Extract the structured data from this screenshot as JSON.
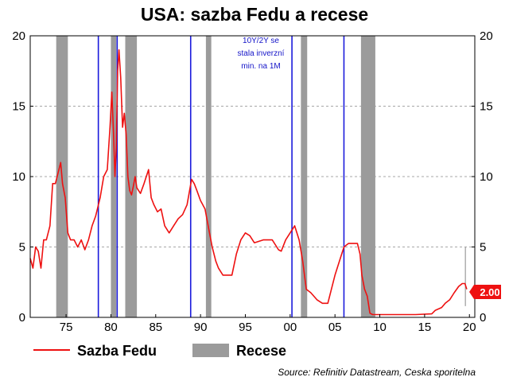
{
  "chart_data": {
    "type": "line",
    "title": "USA: sazba Fedu a recese",
    "xlim": [
      1971.0,
      2020.6
    ],
    "ylim": [
      0,
      20
    ],
    "x_ticks": [
      {
        "value": 1975,
        "label": "75"
      },
      {
        "value": 1980,
        "label": "80"
      },
      {
        "value": 1985,
        "label": "85"
      },
      {
        "value": 1990,
        "label": "90"
      },
      {
        "value": 1995,
        "label": "95"
      },
      {
        "value": 2000,
        "label": "00"
      },
      {
        "value": 2005,
        "label": "05"
      },
      {
        "value": 2010,
        "label": "10"
      },
      {
        "value": 2015,
        "label": "15"
      },
      {
        "value": 2020,
        "label": "20"
      }
    ],
    "y_ticks": [
      {
        "value": 0,
        "label": "0"
      },
      {
        "value": 5,
        "label": "5"
      },
      {
        "value": 10,
        "label": "10"
      },
      {
        "value": 15,
        "label": "15"
      },
      {
        "value": 20,
        "label": "20"
      }
    ],
    "grid": "dashed-horizontal",
    "series": [
      {
        "name": "Sazba Fedu",
        "color": "#ee1111",
        "type": "line",
        "x": [
          1971.0,
          1971.3,
          1971.6,
          1971.9,
          1972.2,
          1972.5,
          1972.8,
          1973.2,
          1973.5,
          1973.8,
          1974.2,
          1974.4,
          1974.6,
          1974.9,
          1975.2,
          1975.5,
          1975.9,
          1976.3,
          1976.7,
          1977.1,
          1977.5,
          1977.9,
          1978.3,
          1978.8,
          1979.2,
          1979.6,
          1979.9,
          1980.1,
          1980.3,
          1980.45,
          1980.6,
          1980.75,
          1980.9,
          1981.1,
          1981.3,
          1981.5,
          1981.7,
          1981.9,
          1982.1,
          1982.3,
          1982.5,
          1982.7,
          1982.9,
          1983.3,
          1983.7,
          1984.2,
          1984.5,
          1984.8,
          1985.2,
          1985.6,
          1986.0,
          1986.5,
          1987.0,
          1987.5,
          1988.0,
          1988.5,
          1989.0,
          1989.3,
          1989.6,
          1990.0,
          1990.5,
          1991.0,
          1991.3,
          1991.7,
          1992.0,
          1992.5,
          1993.0,
          1993.5,
          1994.0,
          1994.5,
          1995.0,
          1995.5,
          1996.0,
          1997.0,
          1998.0,
          1998.7,
          1999.0,
          1999.5,
          2000.0,
          2000.5,
          2001.0,
          2001.4,
          2001.8,
          2002.3,
          2003.0,
          2003.6,
          2004.2,
          2004.6,
          2005.0,
          2005.5,
          2006.0,
          2006.5,
          2007.0,
          2007.5,
          2007.8,
          2008.0,
          2008.3,
          2008.6,
          2008.9,
          2009.2,
          2010.0,
          2012.0,
          2014.0,
          2015.8,
          2016.2,
          2016.9,
          2017.3,
          2017.8,
          2018.3,
          2018.8,
          2019.2,
          2019.5,
          2019.7
        ],
        "values": [
          4.2,
          3.5,
          5.0,
          4.7,
          3.5,
          5.5,
          5.5,
          6.5,
          9.5,
          9.5,
          10.5,
          11.0,
          9.5,
          8.5,
          6.0,
          5.5,
          5.5,
          5.0,
          5.5,
          4.8,
          5.5,
          6.5,
          7.2,
          8.5,
          10.0,
          10.5,
          13.5,
          16.0,
          13.0,
          10.0,
          12.0,
          17.5,
          19.0,
          17.0,
          13.5,
          14.5,
          13.0,
          10.0,
          9.0,
          8.7,
          9.3,
          10.0,
          9.2,
          8.8,
          9.5,
          10.5,
          8.5,
          8.0,
          7.5,
          7.7,
          6.5,
          6.0,
          6.5,
          7.0,
          7.3,
          8.0,
          9.8,
          9.5,
          9.0,
          8.3,
          7.7,
          6.0,
          5.0,
          4.0,
          3.5,
          3.0,
          3.0,
          3.0,
          4.5,
          5.5,
          6.0,
          5.8,
          5.3,
          5.5,
          5.5,
          4.8,
          4.7,
          5.5,
          6.0,
          6.5,
          5.5,
          4.0,
          2.0,
          1.75,
          1.25,
          1.0,
          1.0,
          2.0,
          3.0,
          4.0,
          5.0,
          5.25,
          5.25,
          5.25,
          4.5,
          3.0,
          2.0,
          1.5,
          0.3,
          0.2,
          0.2,
          0.2,
          0.2,
          0.25,
          0.5,
          0.7,
          1.0,
          1.25,
          1.75,
          2.2,
          2.4,
          2.4,
          2.0
        ]
      },
      {
        "name": "Recese",
        "color": "#9b9b9b",
        "type": "band",
        "periods": [
          [
            1973.9,
            1975.2
          ],
          [
            1980.0,
            1980.6
          ],
          [
            1981.6,
            1982.9
          ],
          [
            1990.6,
            1991.2
          ],
          [
            2001.2,
            2001.9
          ],
          [
            2007.9,
            2009.5
          ]
        ]
      }
    ],
    "vertical_lines": [
      1978.6,
      1980.7,
      1988.9,
      2000.2,
      2006.0
    ],
    "vertical_line_color": "#1a1adc",
    "annotation": [
      "10Y/2Y se",
      "stala inverzní",
      "min. na 1M"
    ],
    "last_value_label": "2.00",
    "legend": [
      {
        "label": "Sazba Fedu",
        "kind": "line",
        "color": "#ee1111"
      },
      {
        "label": "Recese",
        "kind": "band",
        "color": "#9b9b9b"
      }
    ],
    "legend_position": "bottom-left",
    "source": "Source: Refinitiv Datastream, Ceska sporitelna"
  }
}
